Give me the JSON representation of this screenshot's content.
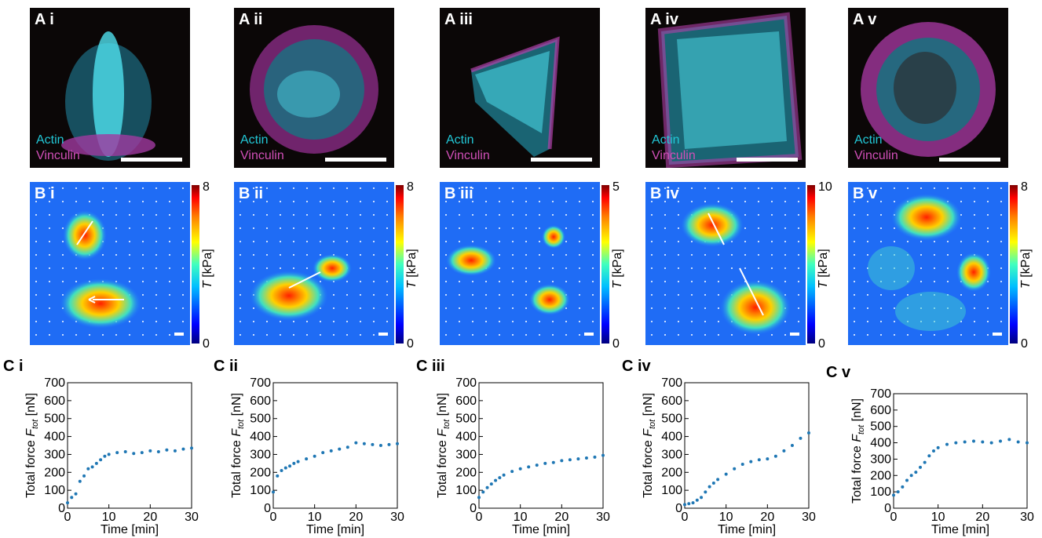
{
  "panels_a": [
    {
      "label": "A i",
      "actin": "Actin",
      "vinculin": "Vinculin"
    },
    {
      "label": "A ii",
      "actin": "Actin",
      "vinculin": "Vinculin"
    },
    {
      "label": "A iii",
      "actin": "Actin",
      "vinculin": "Vinculin"
    },
    {
      "label": "A iv",
      "actin": "Actin",
      "vinculin": "Vinculin"
    },
    {
      "label": "A v",
      "actin": "Actin",
      "vinculin": "Vinculin"
    }
  ],
  "panels_b": [
    {
      "label": "B i",
      "cbar_max": "8",
      "cbar_min": "0"
    },
    {
      "label": "B ii",
      "cbar_max": "8",
      "cbar_min": "0"
    },
    {
      "label": "B iii",
      "cbar_max": "5",
      "cbar_min": "0"
    },
    {
      "label": "B iv",
      "cbar_max": "10",
      "cbar_min": "0"
    },
    {
      "label": "B v",
      "cbar_max": "8",
      "cbar_min": "0"
    }
  ],
  "cbar_title": {
    "symbol": "T",
    "unit": " [kPa]"
  },
  "colors": {
    "actin": "#22c7d6",
    "vinculin": "#d14fb8",
    "series": "#1f77b4"
  },
  "chart_data": [
    {
      "type": "scatter",
      "panel": "C i",
      "xlabel": "Time [min]",
      "ylabel_prefix": "Total force ",
      "ylabel_symbol": "F",
      "ylabel_sub": "tot",
      "ylabel_unit": " [nN]",
      "xlim": [
        0,
        30
      ],
      "ylim": [
        0,
        700
      ],
      "xticks": [
        0,
        10,
        20,
        30
      ],
      "yticks": [
        0,
        100,
        200,
        300,
        400,
        500,
        600,
        700
      ],
      "x": [
        0,
        1,
        2,
        3,
        4,
        5,
        6,
        7,
        8,
        9,
        10,
        12,
        14,
        16,
        18,
        20,
        22,
        24,
        26,
        28,
        30
      ],
      "y": [
        30,
        60,
        80,
        150,
        180,
        220,
        230,
        250,
        270,
        290,
        300,
        310,
        315,
        305,
        310,
        320,
        315,
        325,
        320,
        330,
        335
      ]
    },
    {
      "type": "scatter",
      "panel": "C ii",
      "xlabel": "Time [min]",
      "ylabel_prefix": "Total force ",
      "ylabel_symbol": "F",
      "ylabel_sub": "tot",
      "ylabel_unit": " [nN]",
      "xlim": [
        0,
        30
      ],
      "ylim": [
        0,
        700
      ],
      "xticks": [
        0,
        10,
        20,
        30
      ],
      "yticks": [
        0,
        100,
        200,
        300,
        400,
        500,
        600,
        700
      ],
      "x": [
        0,
        1,
        2,
        3,
        4,
        5,
        6,
        8,
        10,
        12,
        14,
        16,
        18,
        20,
        22,
        24,
        26,
        28,
        30
      ],
      "y": [
        90,
        180,
        210,
        225,
        235,
        250,
        260,
        275,
        290,
        310,
        320,
        330,
        340,
        365,
        360,
        355,
        350,
        355,
        360
      ]
    },
    {
      "type": "scatter",
      "panel": "C iii",
      "xlabel": "Time [min]",
      "ylabel_prefix": "Total force ",
      "ylabel_symbol": "F",
      "ylabel_sub": "tot",
      "ylabel_unit": " [nN]",
      "xlim": [
        0,
        30
      ],
      "ylim": [
        0,
        700
      ],
      "xticks": [
        0,
        10,
        20,
        30
      ],
      "yticks": [
        0,
        100,
        200,
        300,
        400,
        500,
        600,
        700
      ],
      "x": [
        0,
        1,
        2,
        3,
        4,
        5,
        6,
        8,
        10,
        12,
        14,
        16,
        18,
        20,
        22,
        24,
        26,
        28,
        30
      ],
      "y": [
        60,
        90,
        115,
        135,
        155,
        170,
        185,
        205,
        220,
        230,
        240,
        250,
        255,
        265,
        270,
        275,
        280,
        285,
        295
      ]
    },
    {
      "type": "scatter",
      "panel": "C iv",
      "xlabel": "Time [min]",
      "ylabel_prefix": "Total force ",
      "ylabel_symbol": "F",
      "ylabel_sub": "tot",
      "ylabel_unit": " [nN]",
      "xlim": [
        0,
        30
      ],
      "ylim": [
        0,
        700
      ],
      "xticks": [
        0,
        10,
        20,
        30
      ],
      "yticks": [
        0,
        100,
        200,
        300,
        400,
        500,
        600,
        700
      ],
      "x": [
        0,
        1,
        2,
        3,
        4,
        5,
        6,
        7,
        8,
        10,
        12,
        14,
        16,
        18,
        20,
        22,
        24,
        26,
        28,
        30
      ],
      "y": [
        20,
        25,
        30,
        45,
        60,
        90,
        120,
        140,
        160,
        190,
        220,
        245,
        260,
        270,
        275,
        290,
        320,
        350,
        390,
        420
      ]
    },
    {
      "type": "scatter",
      "panel": "C v",
      "xlabel": "Time [min]",
      "ylabel_prefix": "Total force ",
      "ylabel_symbol": "F",
      "ylabel_sub": "tot",
      "ylabel_unit": " [nN]",
      "xlim": [
        0,
        30
      ],
      "ylim": [
        0,
        700
      ],
      "xticks": [
        0,
        10,
        20,
        30
      ],
      "yticks": [
        0,
        100,
        200,
        300,
        400,
        500,
        600,
        700
      ],
      "x": [
        0,
        1,
        2,
        3,
        4,
        5,
        6,
        7,
        8,
        9,
        10,
        12,
        14,
        16,
        18,
        20,
        22,
        24,
        26,
        28,
        30
      ],
      "y": [
        80,
        100,
        130,
        170,
        200,
        220,
        250,
        280,
        320,
        350,
        370,
        390,
        400,
        405,
        410,
        405,
        400,
        410,
        420,
        405,
        400
      ]
    }
  ]
}
